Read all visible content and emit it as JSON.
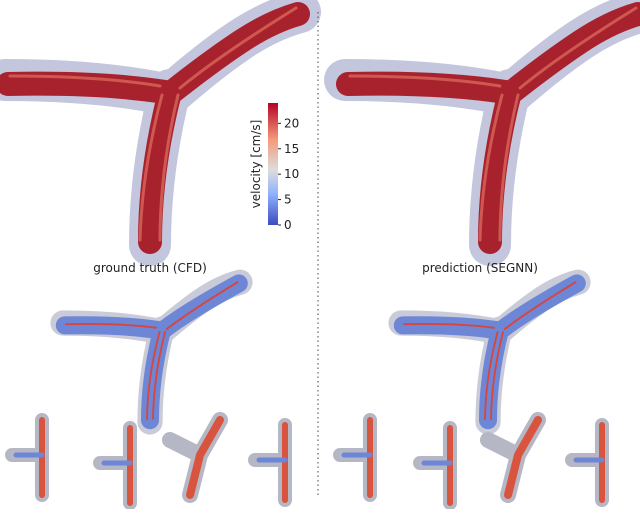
{
  "colorbar": {
    "label": "velocity [cm/s]",
    "lim": [
      0,
      24
    ],
    "ticks": [
      0,
      5,
      10,
      15,
      20
    ]
  },
  "panels": [
    {
      "caption": "ground truth (CFD)"
    },
    {
      "caption": "prediction (SEGNN)"
    }
  ]
}
